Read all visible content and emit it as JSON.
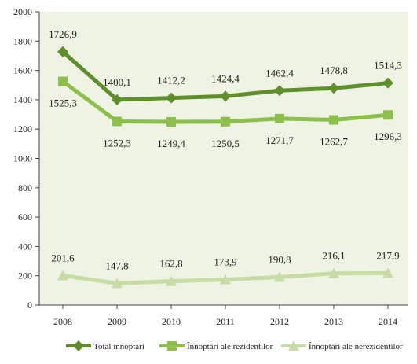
{
  "chart_data": {
    "type": "line",
    "categories": [
      "2008",
      "2009",
      "2010",
      "2011",
      "2012",
      "2013",
      "2014"
    ],
    "ylim": [
      0,
      2000
    ],
    "yticks": [
      0,
      200,
      400,
      600,
      800,
      1000,
      1200,
      1400,
      1600,
      1800,
      2000
    ],
    "grid": false,
    "legend_position": "bottom",
    "title": "",
    "xlabel": "",
    "ylabel": "",
    "series": [
      {
        "name": "Total înnoptări",
        "values": [
          1726.9,
          1400.1,
          1412.2,
          1424.4,
          1462.4,
          1478.8,
          1514.3
        ],
        "labels": [
          "1726,9",
          "1400,1",
          "1412,2",
          "1424,4",
          "1462,4",
          "1478,8",
          "1514,3"
        ],
        "color": "#5e8f2c",
        "marker": "diamond",
        "label_position": "above"
      },
      {
        "name": "Înnoptări ale rezidentilor",
        "values": [
          1525.3,
          1252.3,
          1249.4,
          1250.5,
          1271.7,
          1262.7,
          1296.3
        ],
        "labels": [
          "1525,3",
          "1252,3",
          "1249,4",
          "1250,5",
          "1271,7",
          "1262,7",
          "1296,3"
        ],
        "color": "#8cc04a",
        "marker": "square",
        "label_position": "below"
      },
      {
        "name": "Înnoptări ale nerezidentilor",
        "values": [
          201.6,
          147.8,
          162.8,
          173.9,
          190.8,
          216.1,
          217.9
        ],
        "labels": [
          "201,6",
          "147,8",
          "162,8",
          "173,9",
          "190,8",
          "216,1",
          "217,9"
        ],
        "color": "#c6dca4",
        "marker": "triangle",
        "label_position": "above"
      }
    ],
    "colors": {
      "plot_background": "#eef3e3",
      "axis": "#444444"
    }
  }
}
